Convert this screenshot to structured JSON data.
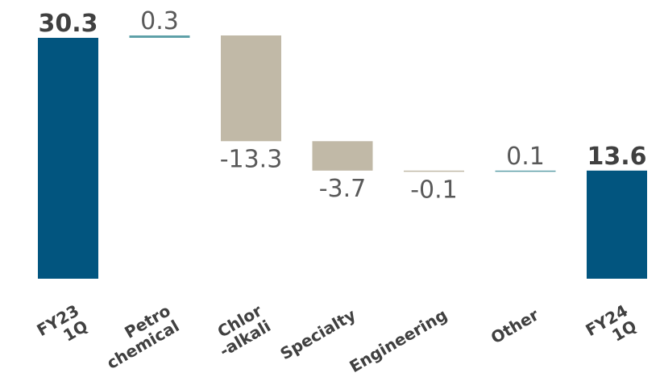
{
  "chart_data": {
    "type": "waterfall",
    "title": "",
    "categories": [
      [
        "FY23",
        "1Q"
      ],
      [
        "Petro",
        "chemical"
      ],
      [
        "Chlor",
        "-alkali"
      ],
      [
        "Specialty"
      ],
      [
        "Engineering"
      ],
      [
        "Other"
      ],
      [
        "FY24",
        "1Q"
      ]
    ],
    "values": [
      30.3,
      0.3,
      -13.3,
      -3.7,
      -0.1,
      0.1,
      13.6
    ],
    "value_labels": [
      "30.3",
      "0.3",
      "-13.3",
      "-3.7",
      "-0.1",
      "0.1",
      "13.6"
    ],
    "bar_kind": [
      "total",
      "delta",
      "delta",
      "delta",
      "delta",
      "delta",
      "total"
    ],
    "colors": {
      "total": "#02557f",
      "increase": "#5ea0a8",
      "decrease": "#c1b9a7"
    },
    "ylim": [
      0,
      30.6
    ],
    "grid": false,
    "legend": "none"
  }
}
